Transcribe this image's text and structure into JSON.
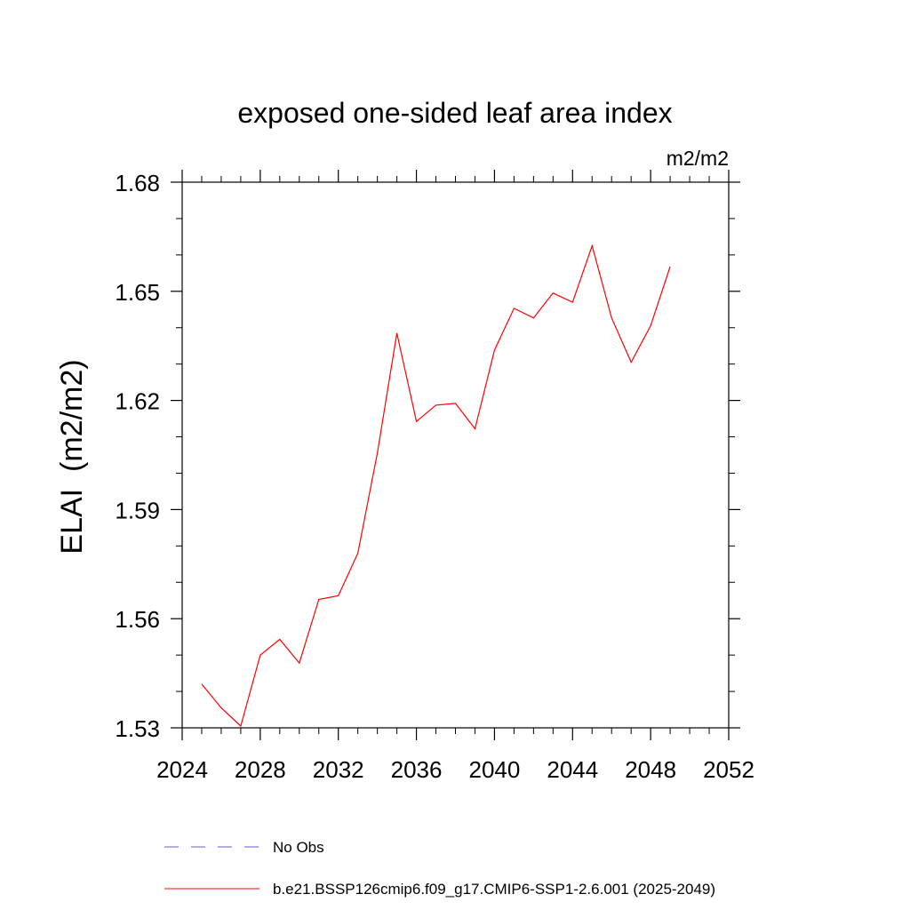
{
  "chart_data": {
    "type": "line",
    "title": "exposed one-sided leaf area index",
    "units": "m2/m2",
    "ylabel": "ELAI  (m2/m2)",
    "xlabel": "",
    "xlim": [
      2024,
      2052
    ],
    "ylim": [
      1.53,
      1.68
    ],
    "xticks": [
      2024,
      2028,
      2032,
      2036,
      2040,
      2044,
      2048,
      2052
    ],
    "yticks": [
      1.53,
      1.56,
      1.59,
      1.62,
      1.65,
      1.68
    ],
    "ytick_labels": [
      "1.53",
      "1.56",
      "1.59",
      "1.62",
      "1.65",
      "1.68"
    ],
    "grid": false,
    "legend_position": "bottom",
    "legend": [
      {
        "label": "No Obs",
        "color": "#6a5acd",
        "style": "dashed"
      },
      {
        "label": "b.e21.BSSP126cmip6.f09_g17.CMIP6-SSP1-2.6.001 (2025-2049)",
        "color": "#ff0000",
        "style": "solid"
      }
    ],
    "series": [
      {
        "color": "#ff0000",
        "x": [
          2025,
          2026,
          2027,
          2028,
          2029,
          2030,
          2031,
          2032,
          2033,
          2034,
          2035,
          2036,
          2037,
          2038,
          2039,
          2040,
          2041,
          2042,
          2043,
          2044,
          2045,
          2046,
          2047,
          2048,
          2049
        ],
        "y": [
          1.542,
          1.5355,
          1.5305,
          1.55,
          1.5543,
          1.5478,
          1.5653,
          1.5663,
          1.578,
          1.6055,
          1.6385,
          1.6142,
          1.6187,
          1.6192,
          1.6122,
          1.6338,
          1.6453,
          1.6427,
          1.6495,
          1.647,
          1.6625,
          1.6427,
          1.6305,
          1.6405,
          1.6568
        ]
      }
    ]
  }
}
